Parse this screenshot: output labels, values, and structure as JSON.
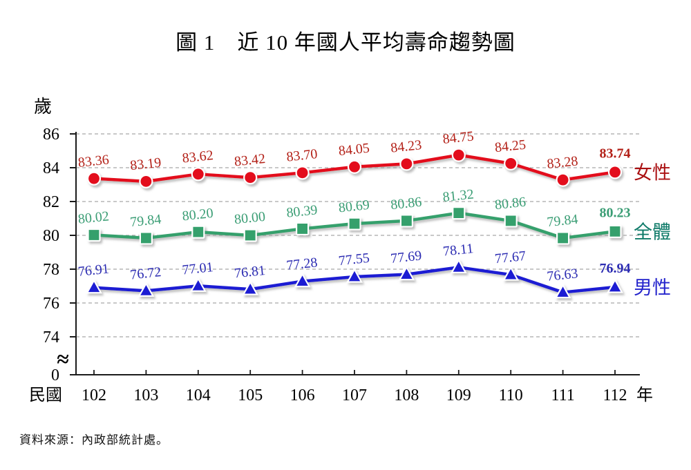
{
  "page": {
    "title": "圖 1　近 10 年國人平均壽命趨勢圖",
    "source": "資料來源：內政部統計處。"
  },
  "chart_data": {
    "type": "line",
    "title": "圖 1　近 10 年國人平均壽命趨勢圖",
    "x_axis": {
      "prefix_label": "民國",
      "suffix_label": "年",
      "categories": [
        "102",
        "103",
        "104",
        "105",
        "106",
        "107",
        "108",
        "109",
        "110",
        "111",
        "112"
      ]
    },
    "y_axis": {
      "unit_label": "歲",
      "ticks": [
        86,
        84,
        82,
        80,
        78,
        76,
        74
      ],
      "origin_label": "0",
      "break_symbol": "≈",
      "ylim_display": [
        74,
        86
      ]
    },
    "grid": {
      "style": "dashed",
      "on": true,
      "color": "#a8a8a8"
    },
    "legend_position": "right-of-last-point",
    "series": [
      {
        "name": "女性",
        "marker": "circle",
        "line_color": "#e3101f",
        "label_color": "#b32017",
        "name_color": "#aa1012",
        "values": [
          "83.36",
          "83.19",
          "83.62",
          "83.42",
          "83.70",
          "84.05",
          "84.23",
          "84.75",
          "84.25",
          "83.28",
          "83.74"
        ]
      },
      {
        "name": "全體",
        "marker": "square",
        "line_color": "#35a06c",
        "label_color": "#3a9d74",
        "name_color": "#0e7a68",
        "values": [
          "80.02",
          "79.84",
          "80.20",
          "80.00",
          "80.39",
          "80.69",
          "80.86",
          "81.32",
          "80.86",
          "79.84",
          "80.23"
        ]
      },
      {
        "name": "男性",
        "marker": "triangle",
        "line_color": "#1b1bd3",
        "label_color": "#2b2bb2",
        "name_color": "#2424cc",
        "values": [
          "76.91",
          "76.72",
          "77.01",
          "76.81",
          "77.28",
          "77.55",
          "77.69",
          "78.11",
          "77.67",
          "76.63",
          "76.94"
        ]
      }
    ],
    "source": "資料來源：內政部統計處。"
  }
}
